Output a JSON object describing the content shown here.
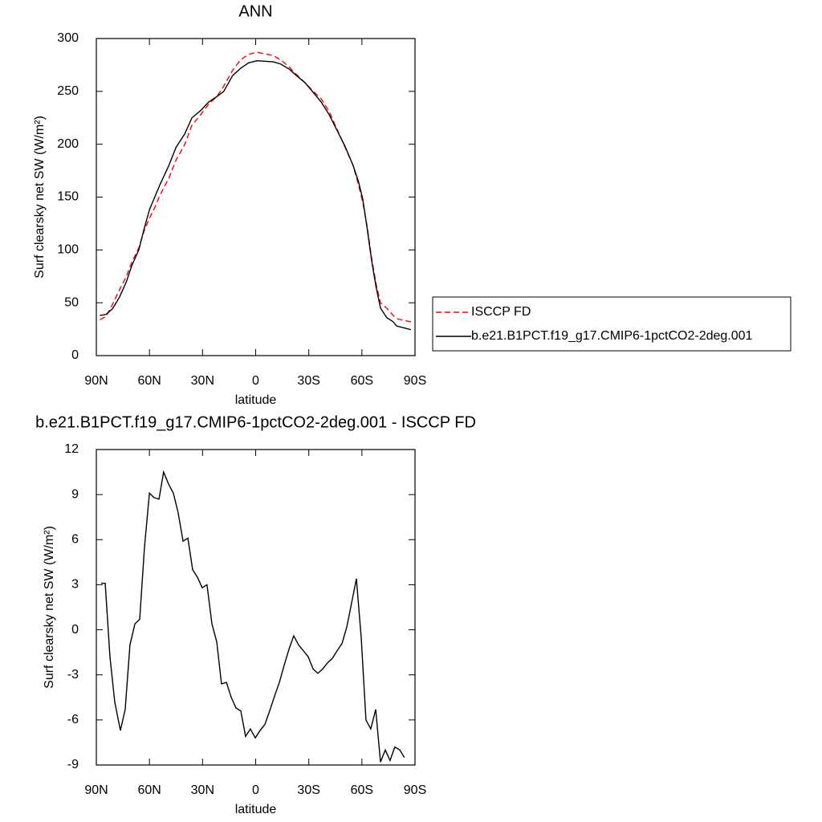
{
  "chart_data": [
    {
      "type": "line",
      "title": "ANN",
      "x_label": "latitude",
      "y_label": "Surf clearsky net SW (W/m²)",
      "xlim": [
        90,
        -90
      ],
      "xticks": [
        {
          "value": 90,
          "label": "90N"
        },
        {
          "value": 60,
          "label": "60N"
        },
        {
          "value": 30,
          "label": "30N"
        },
        0,
        {
          "value": -30,
          "label": "30S"
        },
        {
          "value": -60,
          "label": "60S"
        },
        {
          "value": -90,
          "label": "90S"
        }
      ],
      "ylim": [
        0,
        300
      ],
      "yticks": [
        0,
        50,
        100,
        150,
        200,
        250,
        300
      ],
      "legend": "right",
      "x": [
        88,
        84.5,
        81,
        77,
        73,
        70,
        66,
        63,
        60,
        57,
        54,
        49,
        45,
        40,
        36,
        31,
        26.5,
        22,
        18,
        13,
        8.4,
        4,
        -0.7,
        -9.7,
        -14,
        -19,
        -23,
        -28,
        -32,
        -37,
        -41.5,
        -46,
        -50.5,
        -55,
        -58,
        -60.5,
        -63,
        -65.5,
        -68,
        -70.5,
        -74,
        -77.7,
        -79.6,
        -84.5,
        -87.7
      ],
      "series": [
        {
          "name": "ISCCP FD",
          "color": "#ff0000",
          "dashed": true,
          "values": [
            34,
            37,
            48,
            62,
            75,
            88,
            102,
            118,
            130,
            140,
            152,
            168,
            185,
            200,
            218,
            228,
            238,
            245,
            255,
            270,
            280,
            285,
            287,
            284,
            280,
            273,
            266,
            258,
            251,
            243,
            231,
            214,
            197,
            180,
            162,
            145,
            122,
            92,
            68,
            50,
            45,
            38,
            35,
            33,
            32
          ]
        },
        {
          "name": "b.e21.B1PCT.f19_g17.CMIP6-1pctCO2-2deg.001",
          "color": "#000000",
          "dashed": false,
          "values": [
            38,
            39,
            44,
            55,
            70,
            85,
            100,
            120,
            138,
            150,
            162,
            180,
            197,
            210,
            225,
            232,
            240,
            245,
            250,
            265,
            272,
            277,
            279,
            278,
            276,
            271,
            265,
            258,
            250,
            240,
            228,
            213,
            198,
            180,
            165,
            148,
            120,
            90,
            65,
            45,
            36,
            32,
            28,
            26,
            24.5
          ]
        }
      ]
    },
    {
      "type": "line",
      "title": "b.e21.B1PCT.f19_g17.CMIP6-1pctCO2-2deg.001 - ISCCP FD",
      "x_label": "latitude",
      "y_label": "Surf clearsky net SW (W/m²)",
      "xlim": [
        90,
        -90
      ],
      "xticks": [
        {
          "value": 90,
          "label": "90N"
        },
        {
          "value": 60,
          "label": "60N"
        },
        {
          "value": 30,
          "label": "30N"
        },
        0,
        {
          "value": -30,
          "label": "30S"
        },
        {
          "value": -60,
          "label": "60S"
        },
        {
          "value": -90,
          "label": "90S"
        }
      ],
      "ylim": [
        -9,
        12
      ],
      "yticks": [
        -9,
        -6,
        -3,
        0,
        3,
        6,
        9,
        12
      ],
      "x": [
        87.3,
        85,
        82.3,
        79.6,
        76.4,
        73.7,
        71,
        68.2,
        65.5,
        62.8,
        60,
        57.4,
        54.6,
        52,
        49.2,
        46.5,
        43.8,
        41,
        38.3,
        35.6,
        32.9,
        30.2,
        27.5,
        24.7,
        22,
        19.3,
        16.5,
        13.8,
        11.1,
        8.4,
        5.7,
        3,
        0.2,
        -2.5,
        -5.2,
        -7.9,
        -10.7,
        -13.4,
        -16,
        -18.8,
        -21.5,
        -24.2,
        -27,
        -29.7,
        -32.4,
        -35.1,
        -37.9,
        -40.6,
        -43.3,
        -46,
        -48.8,
        -51.5,
        -54.2,
        -56.9,
        -59.6,
        -62.3,
        -65,
        -67.8,
        -70.5,
        -73.2,
        -75.9,
        -78.6,
        -81.4,
        -84
      ],
      "series": [
        {
          "color": "#000000",
          "dashed": false,
          "values": [
            3.1,
            3.1,
            -1.8,
            -4.8,
            -6.7,
            -5.3,
            -1,
            0.4,
            0.7,
            5.5,
            9.1,
            8.8,
            8.7,
            10.5,
            9.7,
            9.1,
            7.8,
            5.9,
            6.1,
            4.0,
            3.5,
            2.8,
            3.0,
            0.4,
            -0.8,
            -3.6,
            -3.5,
            -4.5,
            -5.2,
            -5.4,
            -7.1,
            -6.6,
            -7.2,
            -6.7,
            -6.3,
            -5.4,
            -4.4,
            -3.5,
            -2.4,
            -1.3,
            -0.4,
            -1.0,
            -1.4,
            -1.8,
            -2.6,
            -2.9,
            -2.6,
            -2.2,
            -1.9,
            -1.4,
            -0.9,
            0.2,
            1.8,
            3.4,
            -0.5,
            -6.0,
            -6.6,
            -5.3,
            -8.8,
            -8.0,
            -8.7,
            -7.8,
            -8.0,
            -8.5
          ]
        }
      ]
    }
  ]
}
